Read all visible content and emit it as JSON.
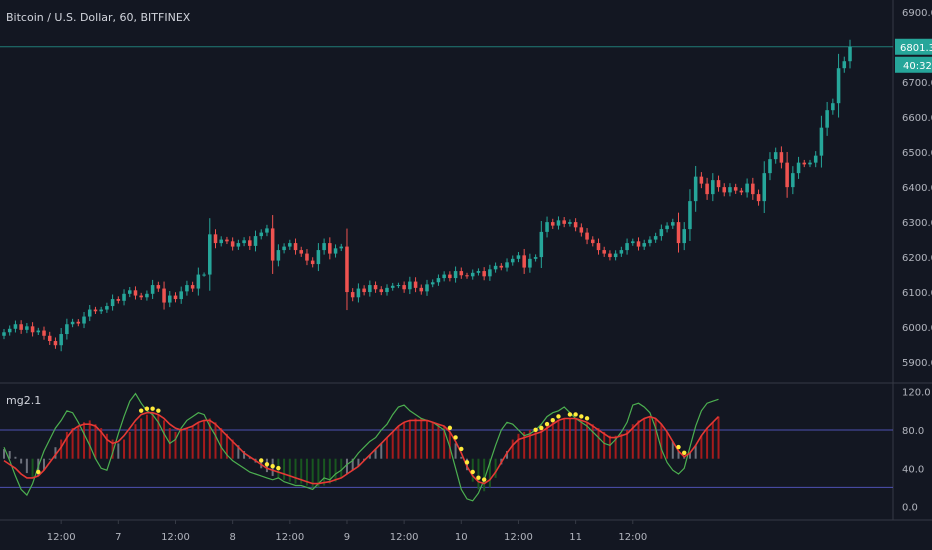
{
  "chart_title": "Bitcoin / U.S. Dollar, 60, BITFINEX",
  "indicator_title": "mg2.1",
  "price_tag": "6801.3",
  "countdown_tag": "40:32",
  "colors": {
    "background": "#131722",
    "up": "#26a69a",
    "down": "#ef5350",
    "green_line": "#4caf50",
    "red_line": "#e53935",
    "dots": "#ffeb3b",
    "guide": "#5d5fd6",
    "hist_red": "#b71c1c",
    "hist_grey": "#787b86",
    "hist_green": "#1b5e20"
  },
  "chart_data": [
    {
      "type": "candlestick",
      "title": "Bitcoin / U.S. Dollar, 60, BITFINEX",
      "y_ticks": [
        "6900.0",
        "6700.0",
        "6600.0",
        "6500.0",
        "6400.0",
        "6300.0",
        "6200.0",
        "6100.0",
        "6000.0",
        "5900.0"
      ],
      "y_tick_values": [
        6900,
        6700,
        6600,
        6500,
        6400,
        6300,
        6200,
        6100,
        6000,
        5900
      ],
      "ylim": [
        5840,
        6935
      ],
      "x_ticks": [
        "12:00",
        "7",
        "12:00",
        "8",
        "12:00",
        "9",
        "12:00",
        "10",
        "12:00",
        "11",
        "12:00"
      ],
      "x_tick_index": [
        10,
        20,
        30,
        40,
        50,
        60,
        70,
        80,
        90,
        100,
        110
      ],
      "last_price": 6801.3,
      "close": [
        5985,
        5995,
        6008,
        5992,
        6002,
        5985,
        5990,
        5975,
        5960,
        5948,
        5980,
        6008,
        6015,
        6010,
        6030,
        6050,
        6045,
        6050,
        6060,
        6080,
        6075,
        6095,
        6105,
        6090,
        6085,
        6095,
        6120,
        6110,
        6070,
        6090,
        6080,
        6102,
        6120,
        6110,
        6150,
        6150,
        6265,
        6240,
        6250,
        6245,
        6230,
        6240,
        6248,
        6232,
        6260,
        6270,
        6282,
        6190,
        6220,
        6230,
        6240,
        6220,
        6210,
        6190,
        6180,
        6220,
        6240,
        6210,
        6225,
        6230,
        6100,
        6085,
        6110,
        6100,
        6120,
        6108,
        6100,
        6112,
        6118,
        6120,
        6108,
        6130,
        6112,
        6102,
        6122,
        6128,
        6140,
        6150,
        6140,
        6160,
        6148,
        6145,
        6155,
        6160,
        6145,
        6165,
        6175,
        6170,
        6185,
        6195,
        6205,
        6170,
        6195,
        6200,
        6272,
        6300,
        6290,
        6305,
        6295,
        6300,
        6285,
        6270,
        6250,
        6240,
        6220,
        6210,
        6200,
        6210,
        6220,
        6240,
        6245,
        6230,
        6240,
        6250,
        6260,
        6280,
        6290,
        6300,
        6240,
        6280,
        6360,
        6430,
        6410,
        6380,
        6420,
        6400,
        6385,
        6400,
        6390,
        6385,
        6410,
        6380,
        6360,
        6440,
        6480,
        6500,
        6470,
        6400,
        6440,
        6470,
        6465,
        6470,
        6490,
        6570,
        6620,
        6640,
        6740,
        6760,
        6801
      ]
    },
    {
      "type": "line",
      "title": "mg2.1",
      "y_ticks": [
        "120.0",
        "80.0",
        "40.0",
        "0.0"
      ],
      "y_tick_values": [
        120,
        80,
        40,
        0
      ],
      "ylim": [
        -14,
        128
      ],
      "guide_levels": [
        80,
        20
      ],
      "series": [
        {
          "values": [
            62,
            48,
            32,
            18,
            12,
            24,
            42,
            58,
            70,
            82,
            90,
            100,
            98,
            88,
            76,
            64,
            50,
            40,
            38,
            56,
            76,
            94,
            110,
            118,
            108,
            100,
            96,
            88,
            76,
            66,
            70,
            82,
            90,
            94,
            98,
            96,
            84,
            74,
            62,
            54,
            48,
            44,
            40,
            36,
            34,
            32,
            30,
            28,
            30,
            26,
            24,
            22,
            22,
            20,
            18,
            24,
            30,
            28,
            34,
            38,
            44,
            48,
            56,
            62,
            68,
            72,
            80,
            86,
            96,
            104,
            106,
            100,
            96,
            92,
            90,
            88,
            84,
            80,
            62,
            40,
            18,
            8,
            6,
            14,
            28,
            46,
            64,
            80,
            88,
            86,
            80,
            74,
            76,
            80,
            86,
            94,
            98,
            100,
            104,
            98,
            92,
            88,
            84,
            78,
            72,
            66,
            64,
            70,
            78,
            88,
            106,
            108,
            104,
            98,
            82,
            60,
            46,
            38,
            34,
            40,
            62,
            84,
            100,
            108,
            110,
            112
          ]
        },
        {
          "values": [
            48,
            44,
            40,
            34,
            30,
            30,
            32,
            38,
            46,
            54,
            62,
            72,
            80,
            84,
            86,
            86,
            84,
            78,
            70,
            66,
            68,
            74,
            82,
            90,
            96,
            98,
            98,
            96,
            92,
            86,
            82,
            80,
            82,
            84,
            88,
            90,
            90,
            86,
            80,
            74,
            68,
            62,
            56,
            52,
            48,
            44,
            40,
            38,
            36,
            34,
            32,
            30,
            28,
            26,
            24,
            24,
            25,
            26,
            28,
            30,
            34,
            38,
            42,
            48,
            54,
            60,
            66,
            72,
            78,
            84,
            88,
            90,
            90,
            90,
            90,
            88,
            86,
            84,
            78,
            68,
            56,
            42,
            32,
            26,
            24,
            28,
            36,
            46,
            56,
            64,
            70,
            72,
            74,
            76,
            78,
            82,
            86,
            90,
            92,
            92,
            92,
            90,
            88,
            84,
            80,
            76,
            72,
            72,
            74,
            76,
            82,
            88,
            92,
            94,
            92,
            86,
            78,
            68,
            58,
            52,
            56,
            64,
            74,
            82,
            88,
            94
          ]
        }
      ],
      "dot_indices": [
        6,
        24,
        25,
        26,
        27,
        45,
        46,
        47,
        48,
        78,
        79,
        80,
        81,
        82,
        83,
        84,
        93,
        94,
        95,
        96,
        97,
        99,
        100,
        101,
        102,
        118,
        119
      ],
      "histogram": [
        60,
        58,
        52,
        45,
        35,
        30,
        32,
        38,
        50,
        62,
        70,
        78,
        82,
        84,
        88,
        90,
        86,
        82,
        76,
        70,
        66,
        70,
        78,
        86,
        92,
        96,
        98,
        96,
        90,
        82,
        78,
        80,
        82,
        84,
        88,
        90,
        92,
        88,
        82,
        76,
        70,
        64,
        58,
        52,
        46,
        40,
        36,
        32,
        30,
        28,
        26,
        24,
        24,
        22,
        20,
        20,
        22,
        24,
        26,
        30,
        34,
        38,
        42,
        48,
        54,
        60,
        66,
        72,
        78,
        84,
        88,
        90,
        92,
        92,
        90,
        88,
        86,
        84,
        78,
        66,
        52,
        38,
        26,
        18,
        16,
        20,
        30,
        44,
        58,
        70,
        76,
        78,
        80,
        82,
        84,
        86,
        88,
        90,
        92,
        92,
        92,
        90,
        88,
        86,
        82,
        78,
        74,
        74,
        76,
        80,
        86,
        90,
        92,
        94,
        92,
        86,
        78,
        68,
        58,
        52,
        56,
        64,
        74,
        82,
        88,
        94
      ]
    }
  ]
}
